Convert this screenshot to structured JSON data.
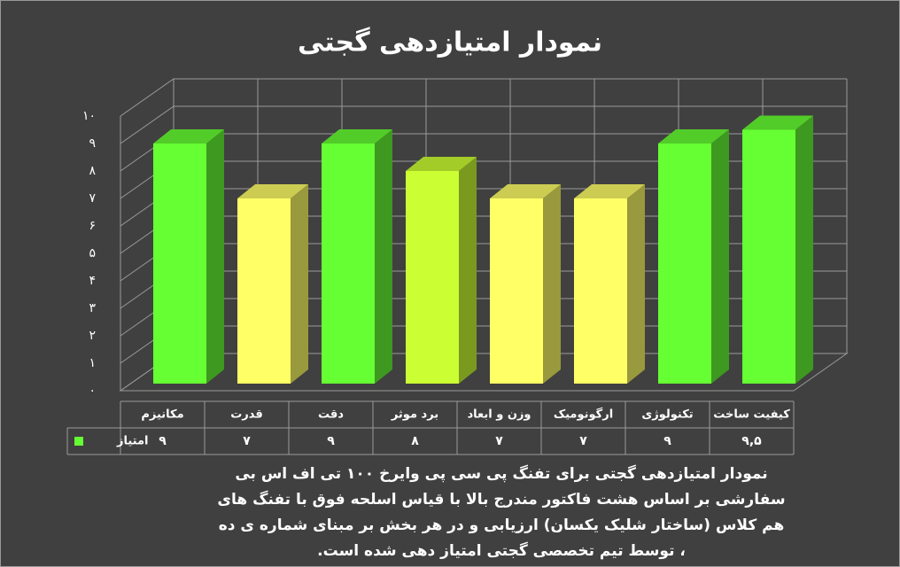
{
  "chart_data": {
    "type": "bar3d",
    "title": "نمودار امتیازدهی گجتی",
    "categories": [
      "مکانیزم",
      "قدرت",
      "دقت",
      "برد موثر",
      "وزن و ابعاد",
      "ارگونومیک",
      "تکنولوژی",
      "کیفیت ساخت"
    ],
    "series": [
      {
        "name": "امتیاز",
        "color": "#66ff33",
        "colors": [
          "#66ff33",
          "#ffff66",
          "#66ff33",
          "#ccff33",
          "#ffff66",
          "#ffff66",
          "#66ff33",
          "#66ff33"
        ],
        "values": [
          9,
          7,
          9,
          8,
          7,
          7,
          9,
          9.5
        ],
        "value_labels": [
          "۹",
          "۷",
          "۹",
          "۸",
          "۷",
          "۷",
          "۹",
          "۹,۵"
        ]
      }
    ],
    "ylim": [
      0,
      10
    ],
    "yticks": [
      {
        "value": 0,
        "label": "۰"
      },
      {
        "value": 1,
        "label": "۱"
      },
      {
        "value": 2,
        "label": "۲"
      },
      {
        "value": 3,
        "label": "۳"
      },
      {
        "value": 4,
        "label": "۴"
      },
      {
        "value": 5,
        "label": "۵"
      },
      {
        "value": 6,
        "label": "۶"
      },
      {
        "value": 7,
        "label": "۷"
      },
      {
        "value": 8,
        "label": "۸"
      },
      {
        "value": 9,
        "label": "۹"
      },
      {
        "value": 10,
        "label": "۱۰"
      }
    ],
    "grid": true,
    "caption": "نمودار امتیازدهی گجتی برای تفنگ پی سی پی وایرخ ۱۰۰ تی اف اس بی سفارشی بر اساس هشت فاکتور مندرج بالا با قیاس اسلحه فوق با تفنگ های هم کلاس (ساختار شلیک یکسان) ارزیابی و در هر بخش بر مبنای شماره ی ده ، توسط تیم تخصصی گجتی امتیاز دهی شده است."
  }
}
